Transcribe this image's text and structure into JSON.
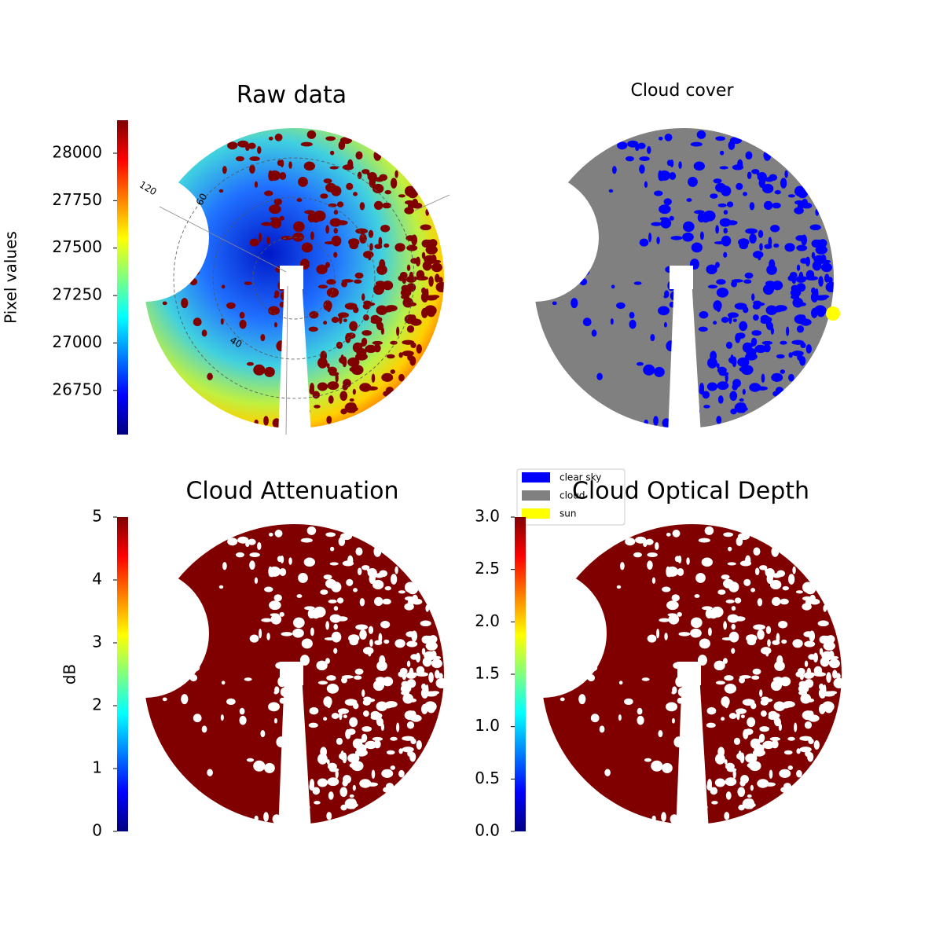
{
  "chart_data": [
    {
      "type": "image",
      "title": "Raw data",
      "colormap": "jet",
      "ylabel": "Pixel values",
      "ylim": [
        26517,
        28174
      ],
      "yticks": [
        26750,
        27000,
        27250,
        27500,
        27750,
        28000
      ],
      "annotations": [
        "120",
        "60",
        "40"
      ]
    },
    {
      "type": "image",
      "title": "Cloud cover",
      "series": [
        {
          "name": "clear sky",
          "color": "#0000ff"
        },
        {
          "name": "cloud",
          "color": "#808080"
        },
        {
          "name": "sun",
          "color": "#ffff00"
        }
      ]
    },
    {
      "type": "image",
      "title": "Cloud Attenuation",
      "colormap": "jet",
      "ylabel": "dB",
      "ylim": [
        0,
        5
      ],
      "yticks": [
        0,
        1,
        2,
        3,
        4,
        5
      ]
    },
    {
      "type": "image",
      "title": "Cloud Optical Depth",
      "colormap": "jet",
      "ylim": [
        0,
        3
      ],
      "yticks": [
        {
          "value": 0,
          "label": "0.0"
        },
        0.5,
        {
          "value": 1,
          "label": "1.0"
        },
        1.5,
        {
          "value": 2,
          "label": "2.0"
        },
        2.5,
        {
          "value": 3,
          "label": "3.0"
        }
      ]
    }
  ]
}
